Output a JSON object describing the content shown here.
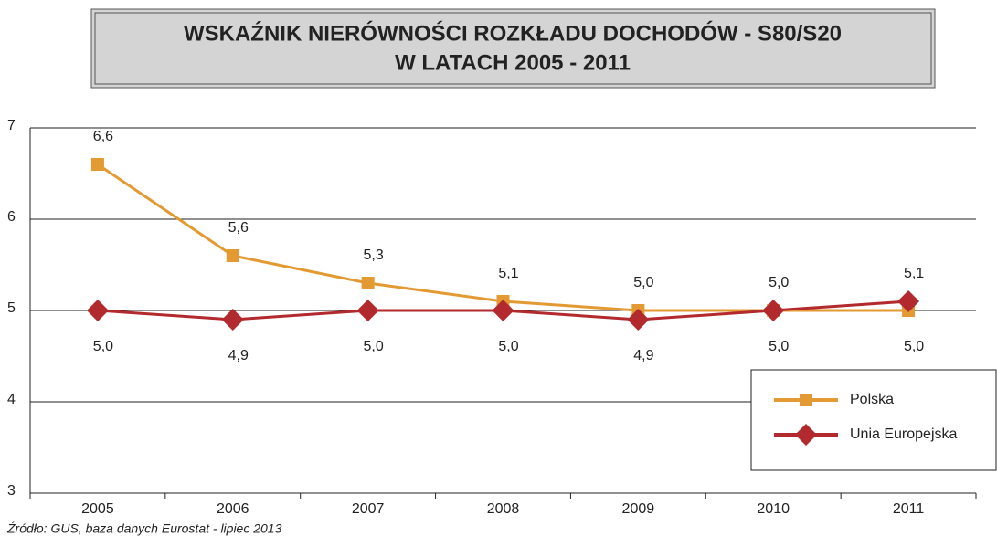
{
  "chart_data": {
    "type": "line",
    "title": "WSKAŹNIK NIERÓWNOŚCI ROZKŁADU DOCHODÓW - S80/S20",
    "subtitle": "W  LATACH 2005 - 2011",
    "categories": [
      "2005",
      "2006",
      "2007",
      "2008",
      "2009",
      "2010",
      "2011"
    ],
    "series": [
      {
        "name": "Polska",
        "color": "#e39a33",
        "marker": "square",
        "values": [
          6.6,
          5.6,
          5.3,
          5.1,
          5.0,
          5.0,
          5.0
        ],
        "value_labels": [
          "6,6",
          "5,6",
          "5,3",
          "5,1",
          "5,0",
          "5,0",
          "5,0"
        ]
      },
      {
        "name": "Unia Europejska",
        "color": "#b22a2e",
        "marker": "diamond",
        "values": [
          5.0,
          4.9,
          5.0,
          5.0,
          4.9,
          5.0,
          5.1
        ],
        "value_labels": [
          "5,0",
          "4,9",
          "5,0",
          "5,0",
          "4,9",
          "5,0",
          "5,1"
        ]
      }
    ],
    "ylim": [
      3,
      7
    ],
    "yticks": [
      3,
      4,
      5,
      6,
      7
    ],
    "grid": true,
    "legend": "lower right",
    "source": "Źródło: GUS, baza danych Eurostat - lipiec 2013"
  }
}
